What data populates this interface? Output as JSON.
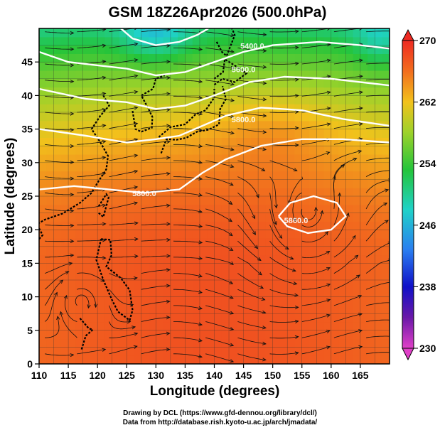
{
  "chart_data": {
    "type": "heatmap",
    "title": "GSM 18Z26Apr2026 (500.0hPa)",
    "xlabel": "Longitude (degrees)",
    "ylabel": "Latitude  (degrees)",
    "xlim": [
      110,
      170
    ],
    "ylim": [
      0,
      50
    ],
    "x_ticks": [
      110,
      115,
      120,
      125,
      130,
      135,
      140,
      145,
      150,
      155,
      160,
      165
    ],
    "y_ticks": [
      0,
      5,
      10,
      15,
      20,
      25,
      30,
      35,
      40,
      45
    ],
    "grid": true,
    "colorbar": {
      "min": 230,
      "max": 270,
      "ticks": [
        230,
        238,
        246,
        254,
        262,
        270
      ],
      "placement": "right"
    },
    "field": "temperature (K)",
    "contour_labels": [
      {
        "text": "5400.0",
        "lon": 146.5,
        "lat": 47
      },
      {
        "text": "5600.0",
        "lon": 145,
        "lat": 43.5
      },
      {
        "text": "5800.0",
        "lon": 145,
        "lat": 36
      },
      {
        "text": "5800.0",
        "lon": 128,
        "lat": 25
      },
      {
        "text": "5860.0",
        "lon": 154,
        "lat": 21
      }
    ],
    "streamlines": "500hPa wind streamlines overlaid on temperature shading with white geopotential height contours"
  },
  "credits": {
    "line1": "Drawing by DCL (https://www.gfd-dennou.org/library/dcl/)",
    "line2": "Data from http://database.rish.kyoto-u.ac.jp/arch/jmadata/"
  }
}
